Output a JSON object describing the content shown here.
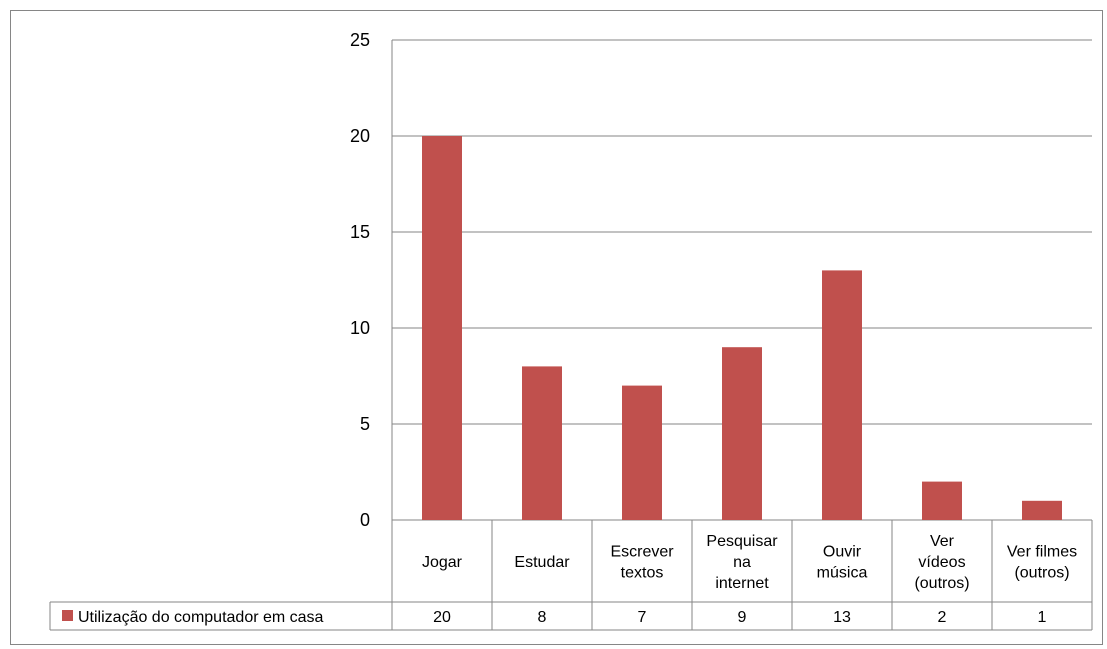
{
  "chart_data": {
    "type": "bar",
    "title": "",
    "xlabel": "",
    "ylabel": "",
    "ylim": [
      0,
      25
    ],
    "yticks": [
      0,
      5,
      10,
      15,
      20,
      25
    ],
    "grid": true,
    "legend_placement": "left of data table",
    "categories": [
      [
        "Jogar"
      ],
      [
        "Estudar"
      ],
      [
        "Escrever",
        "textos"
      ],
      [
        "Pesquisar",
        "na",
        "internet"
      ],
      [
        "Ouvir",
        "música"
      ],
      [
        "Ver",
        "vídeos",
        "(outros)"
      ],
      [
        "Ver filmes",
        "(outros)"
      ]
    ],
    "series": [
      {
        "name": "Utilização do computador em casa",
        "color": "#c0504d",
        "values": [
          20,
          8,
          7,
          9,
          13,
          2,
          1
        ]
      }
    ],
    "data_table": true
  }
}
